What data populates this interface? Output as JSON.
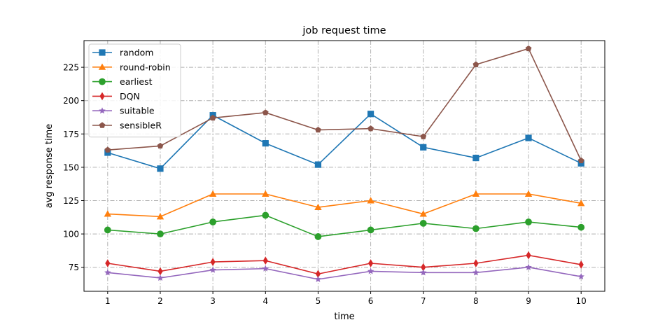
{
  "chart_data": {
    "type": "line",
    "title": "job request time",
    "xlabel": "time",
    "ylabel": "avg response time",
    "x": [
      1,
      2,
      3,
      4,
      5,
      6,
      7,
      8,
      9,
      10
    ],
    "xticks": [
      1,
      2,
      3,
      4,
      5,
      6,
      7,
      8,
      9,
      10
    ],
    "yticks": [
      75,
      100,
      125,
      150,
      175,
      200,
      225
    ],
    "xlim": [
      0.55,
      10.45
    ],
    "ylim": [
      57,
      245
    ],
    "grid": true,
    "legend_position": "top-left",
    "series": [
      {
        "name": "random",
        "color": "#1f77b4",
        "marker": "square",
        "values": [
          161,
          149,
          189,
          168,
          152,
          190,
          165,
          157,
          172,
          153
        ]
      },
      {
        "name": "round-robin",
        "color": "#ff7f0e",
        "marker": "triangle",
        "values": [
          115,
          113,
          130,
          130,
          120,
          125,
          115,
          130,
          130,
          123
        ]
      },
      {
        "name": "earliest",
        "color": "#2ca02c",
        "marker": "circle",
        "values": [
          103,
          100,
          109,
          114,
          98,
          103,
          108,
          104,
          109,
          105
        ]
      },
      {
        "name": "DQN",
        "color": "#d62728",
        "marker": "diamond",
        "values": [
          78,
          72,
          79,
          80,
          70,
          78,
          75,
          78,
          84,
          77
        ]
      },
      {
        "name": "suitable",
        "color": "#9467bd",
        "marker": "star",
        "values": [
          71,
          67,
          73,
          74,
          66,
          72,
          71,
          71,
          75,
          68
        ]
      },
      {
        "name": "sensibleR",
        "color": "#8c564b",
        "marker": "pentagon",
        "values": [
          163,
          166,
          187,
          191,
          178,
          179,
          173,
          227,
          239,
          155
        ]
      }
    ]
  }
}
